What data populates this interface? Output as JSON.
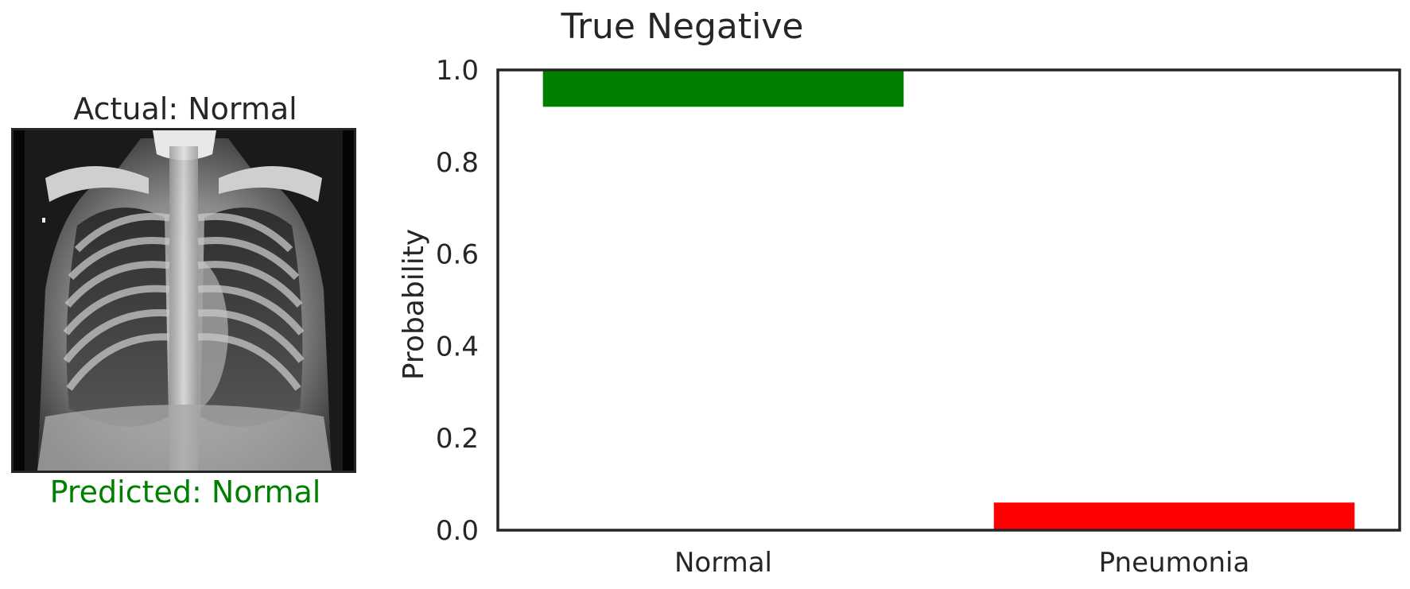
{
  "image_panel": {
    "title": "Actual: Normal",
    "prediction": "Predicted: Normal",
    "prediction_color": "#008000"
  },
  "chart_data": {
    "type": "bar",
    "title": "True Negative",
    "xlabel": "",
    "ylabel": "Probability",
    "categories": [
      "Normal",
      "Pneumonia"
    ],
    "values": [
      0.92,
      0.06
    ],
    "bar_bottoms": [
      1.0,
      0.0
    ],
    "colors": [
      "#008000",
      "#ff0000"
    ],
    "ylim": [
      0,
      1
    ],
    "yticks": [
      "0.0",
      "0.2",
      "0.4",
      "0.6",
      "0.8",
      "1.0"
    ],
    "grid": false
  }
}
